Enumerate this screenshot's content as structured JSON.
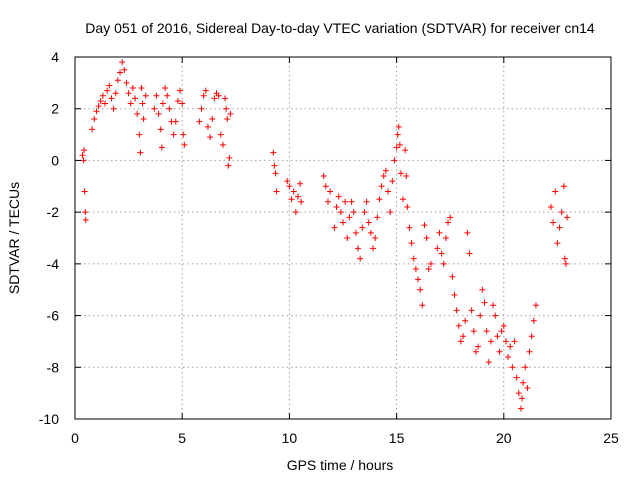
{
  "chart_data": {
    "type": "scatter",
    "title": "Day 051 of 2016, Sidereal Day-to-day VTEC variation (SDTVAR) for receiver cn14",
    "xlabel": "GPS time / hours",
    "ylabel": "SDTVAR / TECUs",
    "xlim": [
      0,
      25
    ],
    "ylim": [
      -10,
      4
    ],
    "xticks": [
      0,
      5,
      10,
      15,
      20,
      25
    ],
    "yticks": [
      -10,
      -8,
      -6,
      -4,
      -2,
      0,
      2,
      4
    ],
    "xtick_labels": [
      "0",
      "5",
      "10",
      "15",
      "20",
      "25"
    ],
    "ytick_labels": [
      "-10",
      "-8",
      "-6",
      "-4",
      "-2",
      "0",
      "2",
      "4"
    ],
    "grid": true,
    "marker": "+",
    "color": "#ff0000",
    "series": [
      {
        "name": "SDTVAR",
        "points": [
          [
            0.35,
            0.2
          ],
          [
            0.4,
            0.0
          ],
          [
            0.42,
            0.4
          ],
          [
            0.45,
            -1.2
          ],
          [
            0.48,
            -2.0
          ],
          [
            0.5,
            -2.3
          ],
          [
            0.8,
            1.2
          ],
          [
            0.9,
            1.6
          ],
          [
            1.0,
            1.9
          ],
          [
            1.1,
            2.1
          ],
          [
            1.2,
            2.3
          ],
          [
            1.3,
            2.5
          ],
          [
            1.4,
            2.2
          ],
          [
            1.5,
            2.7
          ],
          [
            1.6,
            2.9
          ],
          [
            1.7,
            2.4
          ],
          [
            1.8,
            2.0
          ],
          [
            1.9,
            2.6
          ],
          [
            2.0,
            3.1
          ],
          [
            2.1,
            3.4
          ],
          [
            2.2,
            3.8
          ],
          [
            2.3,
            3.5
          ],
          [
            2.4,
            3.0
          ],
          [
            2.5,
            2.6
          ],
          [
            2.6,
            2.2
          ],
          [
            2.7,
            2.8
          ],
          [
            2.8,
            2.4
          ],
          [
            2.9,
            1.8
          ],
          [
            3.0,
            1.0
          ],
          [
            3.05,
            0.3
          ],
          [
            3.1,
            2.8
          ],
          [
            3.15,
            2.2
          ],
          [
            3.2,
            1.6
          ],
          [
            3.3,
            2.5
          ],
          [
            3.7,
            2.0
          ],
          [
            3.8,
            2.5
          ],
          [
            3.9,
            1.8
          ],
          [
            4.0,
            1.2
          ],
          [
            4.05,
            0.5
          ],
          [
            4.1,
            2.2
          ],
          [
            4.2,
            2.8
          ],
          [
            4.3,
            2.5
          ],
          [
            4.4,
            2.0
          ],
          [
            4.5,
            1.5
          ],
          [
            4.6,
            1.0
          ],
          [
            4.7,
            1.5
          ],
          [
            4.8,
            2.3
          ],
          [
            4.9,
            2.7
          ],
          [
            5.0,
            2.2
          ],
          [
            5.05,
            1.0
          ],
          [
            5.1,
            0.6
          ],
          [
            5.8,
            1.5
          ],
          [
            5.9,
            2.0
          ],
          [
            6.0,
            2.5
          ],
          [
            6.1,
            2.7
          ],
          [
            6.2,
            1.3
          ],
          [
            6.3,
            0.9
          ],
          [
            6.4,
            1.6
          ],
          [
            6.5,
            2.4
          ],
          [
            6.6,
            2.6
          ],
          [
            6.7,
            2.5
          ],
          [
            6.8,
            1.0
          ],
          [
            6.9,
            0.6
          ],
          [
            7.0,
            2.4
          ],
          [
            7.05,
            2.0
          ],
          [
            7.1,
            1.6
          ],
          [
            7.15,
            -0.2
          ],
          [
            7.2,
            0.1
          ],
          [
            7.25,
            1.8
          ],
          [
            9.25,
            0.3
          ],
          [
            9.3,
            -0.2
          ],
          [
            9.35,
            -0.5
          ],
          [
            9.4,
            -1.2
          ],
          [
            9.9,
            -0.8
          ],
          [
            10.0,
            -1.0
          ],
          [
            10.1,
            -1.5
          ],
          [
            10.2,
            -1.2
          ],
          [
            10.3,
            -2.0
          ],
          [
            10.4,
            -1.4
          ],
          [
            10.5,
            -0.9
          ],
          [
            10.55,
            -1.6
          ],
          [
            11.6,
            -0.6
          ],
          [
            11.7,
            -1.0
          ],
          [
            11.8,
            -1.6
          ],
          [
            11.9,
            -1.2
          ],
          [
            12.1,
            -2.6
          ],
          [
            12.2,
            -1.8
          ],
          [
            12.3,
            -1.4
          ],
          [
            12.4,
            -2.0
          ],
          [
            12.5,
            -2.4
          ],
          [
            12.6,
            -1.6
          ],
          [
            12.7,
            -3.0
          ],
          [
            12.8,
            -2.2
          ],
          [
            12.9,
            -1.6
          ],
          [
            13.0,
            -2.0
          ],
          [
            13.1,
            -2.8
          ],
          [
            13.2,
            -3.4
          ],
          [
            13.3,
            -3.8
          ],
          [
            13.4,
            -2.6
          ],
          [
            13.5,
            -2.0
          ],
          [
            13.6,
            -1.6
          ],
          [
            13.7,
            -2.4
          ],
          [
            13.8,
            -2.8
          ],
          [
            13.9,
            -3.4
          ],
          [
            14.0,
            -3.0
          ],
          [
            14.1,
            -2.2
          ],
          [
            14.2,
            -1.5
          ],
          [
            14.3,
            -1.0
          ],
          [
            14.4,
            -0.6
          ],
          [
            14.5,
            -0.4
          ],
          [
            14.6,
            -1.2
          ],
          [
            14.7,
            -2.0
          ],
          [
            14.8,
            -0.8
          ],
          [
            14.9,
            0.0
          ],
          [
            15.0,
            0.5
          ],
          [
            15.05,
            1.0
          ],
          [
            15.1,
            1.3
          ],
          [
            15.15,
            0.6
          ],
          [
            15.2,
            -0.5
          ],
          [
            15.3,
            -1.5
          ],
          [
            15.4,
            0.4
          ],
          [
            15.45,
            -0.6
          ],
          [
            15.5,
            -1.8
          ],
          [
            15.6,
            -2.6
          ],
          [
            15.7,
            -3.2
          ],
          [
            15.8,
            -3.8
          ],
          [
            15.9,
            -4.2
          ],
          [
            16.0,
            -4.6
          ],
          [
            16.1,
            -5.0
          ],
          [
            16.2,
            -5.6
          ],
          [
            16.3,
            -2.5
          ],
          [
            16.4,
            -3.0
          ],
          [
            16.5,
            -4.2
          ],
          [
            16.6,
            -4.0
          ],
          [
            16.9,
            -3.4
          ],
          [
            17.0,
            -2.8
          ],
          [
            17.1,
            -3.6
          ],
          [
            17.2,
            -4.0
          ],
          [
            17.3,
            -3.0
          ],
          [
            17.4,
            -2.4
          ],
          [
            17.5,
            -2.2
          ],
          [
            17.6,
            -4.5
          ],
          [
            17.7,
            -5.2
          ],
          [
            17.8,
            -5.8
          ],
          [
            17.9,
            -6.4
          ],
          [
            18.0,
            -7.0
          ],
          [
            18.1,
            -6.8
          ],
          [
            18.2,
            -6.2
          ],
          [
            18.3,
            -2.8
          ],
          [
            18.4,
            -3.6
          ],
          [
            18.5,
            -5.8
          ],
          [
            18.6,
            -6.6
          ],
          [
            18.7,
            -7.4
          ],
          [
            18.8,
            -7.2
          ],
          [
            18.9,
            -6.0
          ],
          [
            19.0,
            -5.0
          ],
          [
            19.1,
            -5.5
          ],
          [
            19.2,
            -6.6
          ],
          [
            19.3,
            -7.8
          ],
          [
            19.4,
            -7.0
          ],
          [
            19.5,
            -5.6
          ],
          [
            19.6,
            -6.0
          ],
          [
            19.7,
            -6.8
          ],
          [
            19.8,
            -7.4
          ],
          [
            19.9,
            -6.6
          ],
          [
            20.0,
            -6.4
          ],
          [
            20.1,
            -7.0
          ],
          [
            20.2,
            -7.6
          ],
          [
            20.3,
            -7.2
          ],
          [
            20.4,
            -8.0
          ],
          [
            20.5,
            -7.0
          ],
          [
            20.6,
            -8.4
          ],
          [
            20.7,
            -9.0
          ],
          [
            20.8,
            -9.6
          ],
          [
            20.85,
            -9.2
          ],
          [
            20.9,
            -8.6
          ],
          [
            21.0,
            -8.0
          ],
          [
            21.1,
            -8.8
          ],
          [
            21.2,
            -7.4
          ],
          [
            21.3,
            -6.8
          ],
          [
            21.4,
            -6.2
          ],
          [
            21.5,
            -5.6
          ],
          [
            22.2,
            -1.8
          ],
          [
            22.3,
            -2.4
          ],
          [
            22.4,
            -1.2
          ],
          [
            22.5,
            -3.2
          ],
          [
            22.6,
            -2.6
          ],
          [
            22.7,
            -2.0
          ],
          [
            22.8,
            -1.0
          ],
          [
            22.85,
            -3.8
          ],
          [
            22.9,
            -4.0
          ],
          [
            22.95,
            -2.2
          ]
        ]
      }
    ]
  }
}
